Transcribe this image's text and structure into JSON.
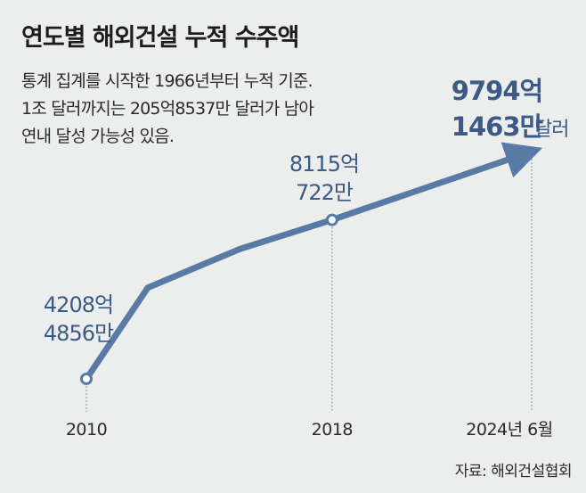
{
  "title": "연도별 해외건설 누적 수주액",
  "subtitle_lines": [
    "통계 집계를 시작한 1966년부터 누적 기준.",
    "1조 달러까지는 205억8537만 달러가 남아",
    "연내 달성 가능성 있음."
  ],
  "source": "자료: 해외건설협회",
  "colors": {
    "line": "#5a7aa6",
    "label": "#3c5a86",
    "guide": "#8a8a8a",
    "background": "#eceeed"
  },
  "chart_data": {
    "type": "line",
    "title": "연도별 해외건설 누적 수주액",
    "xlabel": "",
    "ylabel": "",
    "grid": false,
    "legend": "none",
    "x_tick_labels": [
      "2010",
      "2018",
      "2024년 6월"
    ],
    "points": [
      {
        "x": 2010.0,
        "y": 4208.4856,
        "marker": true,
        "label_lines": [
          "4208억",
          "4856만"
        ]
      },
      {
        "x": 2012.0,
        "y": 6450
      },
      {
        "x": 2015.0,
        "y": 7400
      },
      {
        "x": 2018.0,
        "y": 8115.0722,
        "marker": true,
        "label_lines": [
          "8115억",
          "722만"
        ]
      },
      {
        "x": 2024.5,
        "y": 9794.1463,
        "label_lines": [
          "9794억",
          "1463만"
        ],
        "unit": "달러"
      }
    ],
    "unit": "억 달러",
    "xlim": [
      2010,
      2024.5
    ],
    "ylim": [
      4208,
      9794
    ]
  }
}
